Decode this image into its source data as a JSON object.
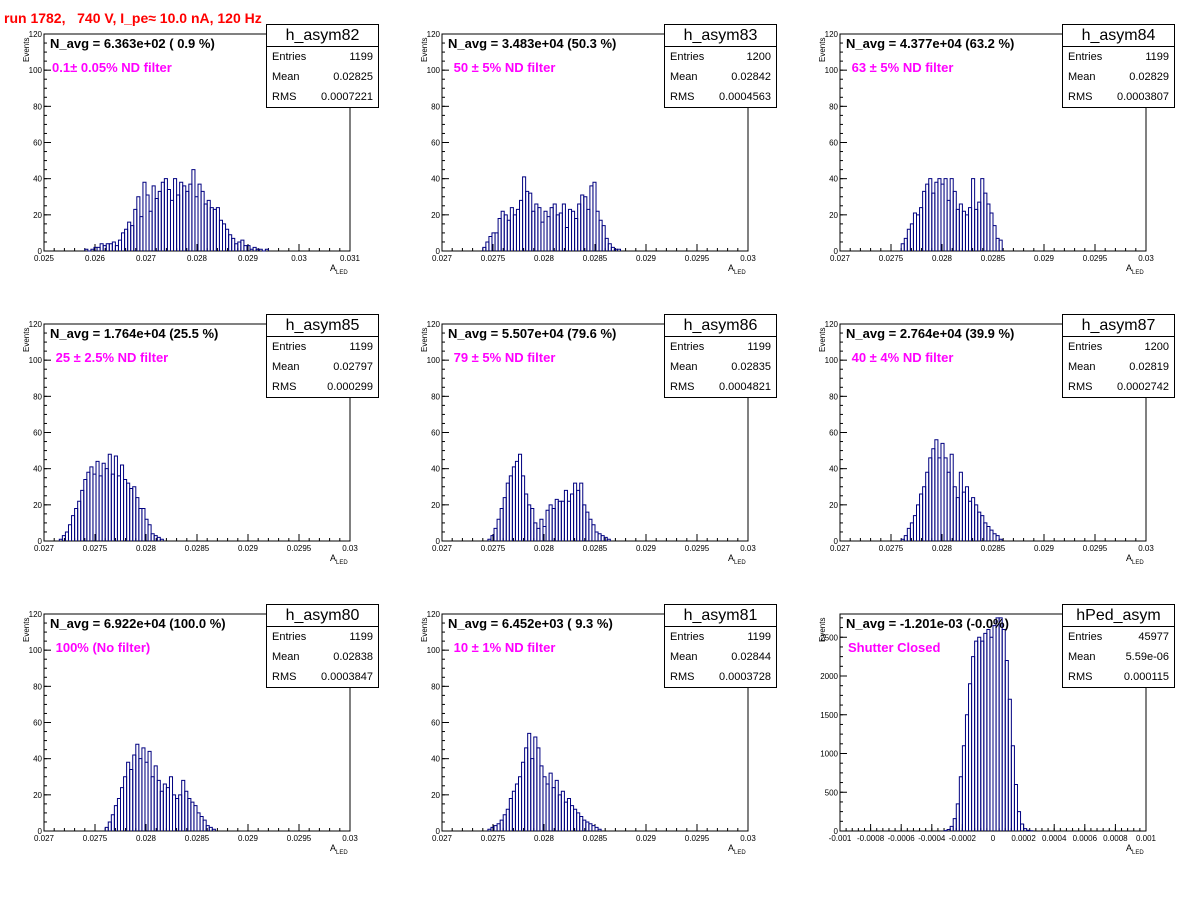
{
  "header": {
    "title": "run 1782,   740 V, I_pe≈ 10.0 nA, 120 Hz"
  },
  "colors": {
    "histogram": "#000080",
    "note": "#ff00ff",
    "title": "#ff0000"
  },
  "axis_labels": {
    "y": "Events",
    "x_main": "A",
    "x_sub": "LED"
  },
  "chart_data": [
    {
      "type": "histogram",
      "hist_name": "h_asym82",
      "n_avg": "N_avg = 6.363e+02 ( 0.9 %)",
      "note": "0.1± 0.05% ND filter",
      "stats": {
        "entries": "1199",
        "mean": "0.02825",
        "rms": "0.0007221"
      },
      "xlim": [
        0.025,
        0.031
      ],
      "ylim": [
        0,
        120
      ],
      "xticks": [
        "0.025",
        "0.026",
        "0.027",
        "0.028",
        "0.029",
        "0.03",
        "0.031"
      ],
      "yticks": [
        "0",
        "20",
        "40",
        "60",
        "80",
        "100",
        "120"
      ],
      "bin_start": 0.0258,
      "bin_width": 6e-05,
      "counts": [
        1,
        0,
        1,
        2,
        2,
        4,
        3,
        4,
        4,
        5,
        3,
        6,
        10,
        12,
        16,
        14,
        23,
        30,
        19,
        38,
        31,
        22,
        36,
        29,
        33,
        38,
        40,
        34,
        28,
        40,
        31,
        38,
        36,
        33,
        37,
        45,
        30,
        37,
        33,
        26,
        28,
        24,
        23,
        24,
        17,
        15,
        12,
        9,
        7,
        4,
        5,
        6,
        3,
        3,
        1,
        2,
        1,
        1,
        0,
        1
      ]
    },
    {
      "type": "histogram",
      "hist_name": "h_asym83",
      "n_avg": "N_avg = 3.483e+04 (50.3 %)",
      "note": " 50 ± 5% ND filter",
      "stats": {
        "entries": "1200",
        "mean": "0.02842",
        "rms": "0.0004563"
      },
      "xlim": [
        0.027,
        0.03
      ],
      "ylim": [
        0,
        120
      ],
      "xticks": [
        "0.027",
        "0.0275",
        "0.028",
        "0.0285",
        "0.029",
        "0.0295",
        "0.03"
      ],
      "yticks": [
        "0",
        "20",
        "40",
        "60",
        "80",
        "100",
        "120"
      ],
      "bin_start": 0.0274,
      "bin_width": 3e-05,
      "counts": [
        2,
        5,
        8,
        10,
        10,
        18,
        22,
        20,
        17,
        24,
        20,
        23,
        28,
        41,
        33,
        32,
        22,
        26,
        24,
        16,
        22,
        19,
        24,
        26,
        20,
        21,
        26,
        13,
        23,
        22,
        18,
        26,
        31,
        30,
        23,
        36,
        38,
        22,
        17,
        14,
        7,
        4,
        2,
        1,
        1
      ]
    },
    {
      "type": "histogram",
      "hist_name": "h_asym84",
      "n_avg": "N_avg = 4.377e+04 (63.2 %)",
      "note": " 63 ± 5% ND filter",
      "stats": {
        "entries": "1199",
        "mean": "0.02829",
        "rms": "0.0003807"
      },
      "xlim": [
        0.027,
        0.03
      ],
      "ylim": [
        0,
        120
      ],
      "xticks": [
        "0.027",
        "0.0275",
        "0.028",
        "0.0285",
        "0.029",
        "0.0295",
        "0.03"
      ],
      "yticks": [
        "0",
        "20",
        "40",
        "60",
        "80",
        "100",
        "120"
      ],
      "bin_start": 0.0276,
      "bin_width": 3e-05,
      "counts": [
        4,
        7,
        12,
        15,
        21,
        20,
        24,
        33,
        37,
        40,
        32,
        38,
        40,
        37,
        40,
        28,
        40,
        33,
        23,
        26,
        22,
        20,
        24,
        40,
        23,
        27,
        40,
        32,
        26,
        21,
        14,
        7,
        6
      ]
    },
    {
      "type": "histogram",
      "hist_name": "h_asym85",
      "n_avg": "N_avg = 1.764e+04 (25.5 %)",
      "note": " 25 ± 2.5% ND filter",
      "stats": {
        "entries": "1199",
        "mean": "0.02797",
        "rms": "0.000299"
      },
      "xlim": [
        0.027,
        0.03
      ],
      "ylim": [
        0,
        120
      ],
      "xticks": [
        "0.027",
        "0.0275",
        "0.028",
        "0.0285",
        "0.029",
        "0.0295",
        "0.03"
      ],
      "yticks": [
        "0",
        "20",
        "40",
        "60",
        "80",
        "100",
        "120"
      ],
      "bin_start": 0.02715,
      "bin_width": 3e-05,
      "counts": [
        1,
        3,
        5,
        9,
        14,
        18,
        22,
        28,
        34,
        38,
        41,
        37,
        44,
        36,
        43,
        40,
        48,
        37,
        47,
        36,
        42,
        34,
        32,
        29,
        30,
        24,
        18,
        18,
        12,
        9,
        4,
        3,
        2,
        1
      ]
    },
    {
      "type": "histogram",
      "hist_name": "h_asym86",
      "n_avg": "N_avg = 5.507e+04 (79.6 %)",
      "note": " 79 ± 5% ND filter",
      "stats": {
        "entries": "1199",
        "mean": "0.02835",
        "rms": "0.0004821"
      },
      "xlim": [
        0.027,
        0.03
      ],
      "ylim": [
        0,
        120
      ],
      "xticks": [
        "0.027",
        "0.0275",
        "0.028",
        "0.0285",
        "0.029",
        "0.0295",
        "0.03"
      ],
      "yticks": [
        "0",
        "20",
        "40",
        "60",
        "80",
        "100",
        "120"
      ],
      "bin_start": 0.02745,
      "bin_width": 3e-05,
      "counts": [
        1,
        3,
        7,
        12,
        18,
        24,
        32,
        36,
        41,
        44,
        48,
        36,
        26,
        20,
        18,
        10,
        7,
        12,
        8,
        17,
        20,
        18,
        23,
        22,
        22,
        28,
        22,
        26,
        32,
        28,
        32,
        20,
        16,
        12,
        9,
        5,
        4,
        3,
        2,
        1
      ]
    },
    {
      "type": "histogram",
      "hist_name": "h_asym87",
      "n_avg": "N_avg = 2.764e+04 (39.9 %)",
      "note": " 40 ± 4% ND filter",
      "stats": {
        "entries": "1200",
        "mean": "0.02819",
        "rms": "0.0002742"
      },
      "xlim": [
        0.027,
        0.03
      ],
      "ylim": [
        0,
        120
      ],
      "xticks": [
        "0.027",
        "0.0275",
        "0.028",
        "0.0285",
        "0.029",
        "0.0295",
        "0.03"
      ],
      "yticks": [
        "0",
        "20",
        "40",
        "60",
        "80",
        "100",
        "120"
      ],
      "bin_start": 0.0276,
      "bin_width": 3e-05,
      "counts": [
        1,
        3,
        7,
        10,
        14,
        20,
        26,
        30,
        38,
        46,
        51,
        56,
        46,
        54,
        46,
        38,
        48,
        30,
        24,
        38,
        27,
        30,
        22,
        24,
        20,
        16,
        14,
        10,
        8,
        6,
        4,
        3,
        1
      ]
    },
    {
      "type": "histogram",
      "hist_name": "h_asym80",
      "n_avg": "N_avg = 6.922e+04 (100.0 %)",
      "note": " 100% (No filter)",
      "stats": {
        "entries": "1199",
        "mean": "0.02838",
        "rms": "0.0003847"
      },
      "xlim": [
        0.027,
        0.03
      ],
      "ylim": [
        0,
        120
      ],
      "xticks": [
        "0.027",
        "0.0275",
        "0.028",
        "0.0285",
        "0.029",
        "0.0295",
        "0.03"
      ],
      "yticks": [
        "0",
        "20",
        "40",
        "60",
        "80",
        "100",
        "120"
      ],
      "bin_start": 0.0276,
      "bin_width": 3e-05,
      "counts": [
        2,
        5,
        9,
        14,
        18,
        24,
        30,
        38,
        34,
        42,
        48,
        40,
        46,
        38,
        44,
        30,
        36,
        28,
        22,
        26,
        24,
        30,
        20,
        18,
        20,
        28,
        22,
        18,
        16,
        14,
        10,
        8,
        6,
        3,
        2,
        1
      ]
    },
    {
      "type": "histogram",
      "hist_name": "h_asym81",
      "n_avg": "N_avg = 6.452e+03 ( 9.3 %)",
      "note": " 10 ± 1% ND filter",
      "stats": {
        "entries": "1199",
        "mean": "0.02844",
        "rms": "0.0003728"
      },
      "xlim": [
        0.027,
        0.03
      ],
      "ylim": [
        0,
        120
      ],
      "xticks": [
        "0.027",
        "0.0275",
        "0.028",
        "0.0285",
        "0.029",
        "0.0295",
        "0.03"
      ],
      "yticks": [
        "0",
        "20",
        "40",
        "60",
        "80",
        "100",
        "120"
      ],
      "bin_start": 0.02745,
      "bin_width": 3e-05,
      "counts": [
        1,
        2,
        3,
        4,
        6,
        9,
        12,
        18,
        22,
        26,
        30,
        38,
        46,
        54,
        40,
        52,
        46,
        36,
        30,
        26,
        32,
        24,
        28,
        20,
        22,
        16,
        18,
        14,
        12,
        10,
        8,
        6,
        5,
        4,
        3,
        2,
        1
      ]
    },
    {
      "type": "histogram",
      "hist_name": "hPed_asym",
      "n_avg": "N_avg = -1.201e-03 (-0.0%)",
      "note": "Shutter Closed",
      "stats": {
        "entries": "45977",
        "mean": "5.59e-06",
        "rms": "0.000115"
      },
      "xlim": [
        -0.001,
        0.001
      ],
      "ylim": [
        0,
        2800
      ],
      "xticks": [
        "-0.001",
        "-0.0008",
        "-0.0006",
        "-0.0004",
        "-0.0002",
        "0",
        "0.0002",
        "0.0004",
        "0.0006",
        "0.0008",
        "0.001"
      ],
      "yticks": [
        "0",
        "500",
        "1000",
        "1500",
        "2000",
        "2500"
      ],
      "bin_start": -0.00032,
      "bin_width": 2e-05,
      "counts": [
        5,
        20,
        60,
        160,
        350,
        700,
        1100,
        1500,
        1900,
        2250,
        2450,
        2500,
        2450,
        2550,
        2600,
        2500,
        2650,
        2750,
        2750,
        2600,
        2200,
        1700,
        1100,
        600,
        250,
        90,
        30,
        10,
        3
      ]
    }
  ]
}
